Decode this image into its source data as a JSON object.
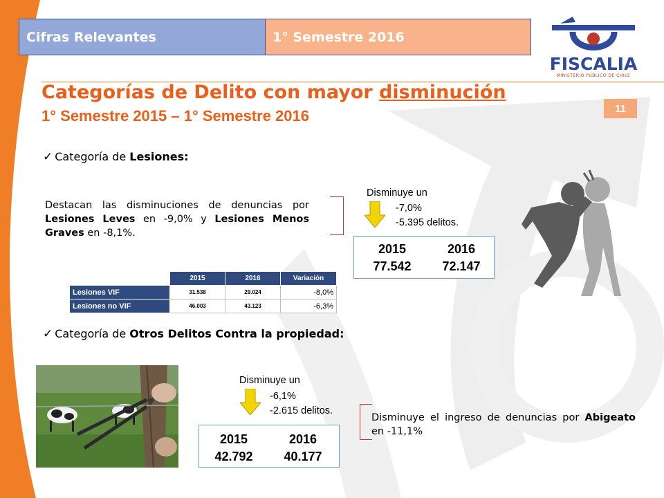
{
  "header": {
    "section": "Cifras Relevantes",
    "period": "1° Semestre 2016"
  },
  "logo": {
    "name": "FISCALIA",
    "subtitle": "MINISTERIO PÚBLICO DE CHILE",
    "colors": {
      "blue": "#2f4a9a",
      "red": "#c0392b"
    }
  },
  "title": {
    "main_prefix": "Categorías de Delito con mayor ",
    "main_emphasis": "disminución",
    "subtitle": "1° Semestre 2015 – 1° Semestre 2016"
  },
  "page_number": "11",
  "section1": {
    "heading_prefix": "Categoría de ",
    "heading_bold": "Lesiones:",
    "desc_parts": [
      "Destacan las disminuciones de denuncias por ",
      "Lesiones Leves",
      " en -9,0% y ",
      "Lesiones Menos Graves",
      " en -8,1%."
    ],
    "callout": {
      "label": "Disminuye un",
      "percent": "-7,0%",
      "count": "-5.395 delitos."
    },
    "box": {
      "year_a": "2015",
      "year_b": "2016",
      "value_a": "77.542",
      "value_b": "72.147"
    },
    "table": {
      "headers": [
        "2015",
        "2016",
        "Variación"
      ],
      "rows": [
        {
          "label": "Lesiones VIF",
          "v2015": "31.538",
          "v2016": "29.024",
          "variation": "-8,0%"
        },
        {
          "label": "Lesiones no VIF",
          "v2015": "46.003",
          "v2016": "43.123",
          "variation": "-6,3%"
        }
      ]
    }
  },
  "section2": {
    "heading_prefix": "Categoría de ",
    "heading_bold": "Otros Delitos Contra la propiedad:",
    "callout": {
      "label": "Disminuye un",
      "percent": "-6,1%",
      "count": "-2.615 delitos."
    },
    "box": {
      "year_a": "2015",
      "year_b": "2016",
      "value_a": "42.792",
      "value_b": "40.177"
    },
    "desc_parts": [
      "Disminuye el ingreso de denuncias por ",
      "Abigeato",
      " en -11,1%"
    ]
  },
  "icons": {
    "check": "✓",
    "arrow": "down-arrow-icon",
    "fight": "fighting-figures-icon",
    "photo": "cattle-fence-cutting-photo"
  },
  "colors": {
    "title_orange": "#e8601c",
    "header_blue": "#94a7d9",
    "header_orange": "#f9b38a",
    "table_navy": "#2e4a7e",
    "arrow_yellow": "#f2d500"
  }
}
